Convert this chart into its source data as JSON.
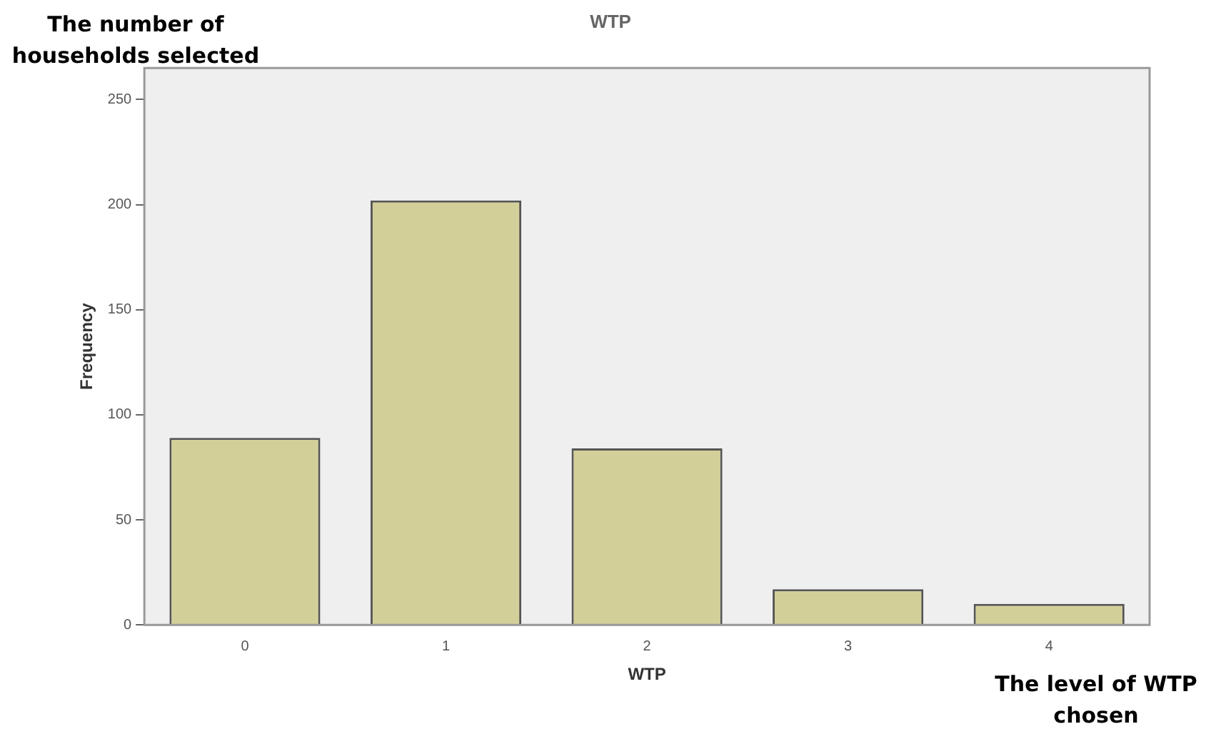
{
  "chart_data": {
    "type": "bar",
    "title": "WTP",
    "xlabel": "WTP",
    "ylabel": "Frequency",
    "categories": [
      "0",
      "1",
      "2",
      "3",
      "4"
    ],
    "values": [
      89,
      202,
      84,
      17,
      10
    ],
    "color": "#d3cf98",
    "ylim": [
      0,
      265
    ],
    "yticks": [
      0,
      50,
      100,
      150,
      200,
      250
    ],
    "grid": false,
    "legend": false,
    "annotations": [
      "The number of households selected",
      "The level of WTP chosen"
    ]
  }
}
